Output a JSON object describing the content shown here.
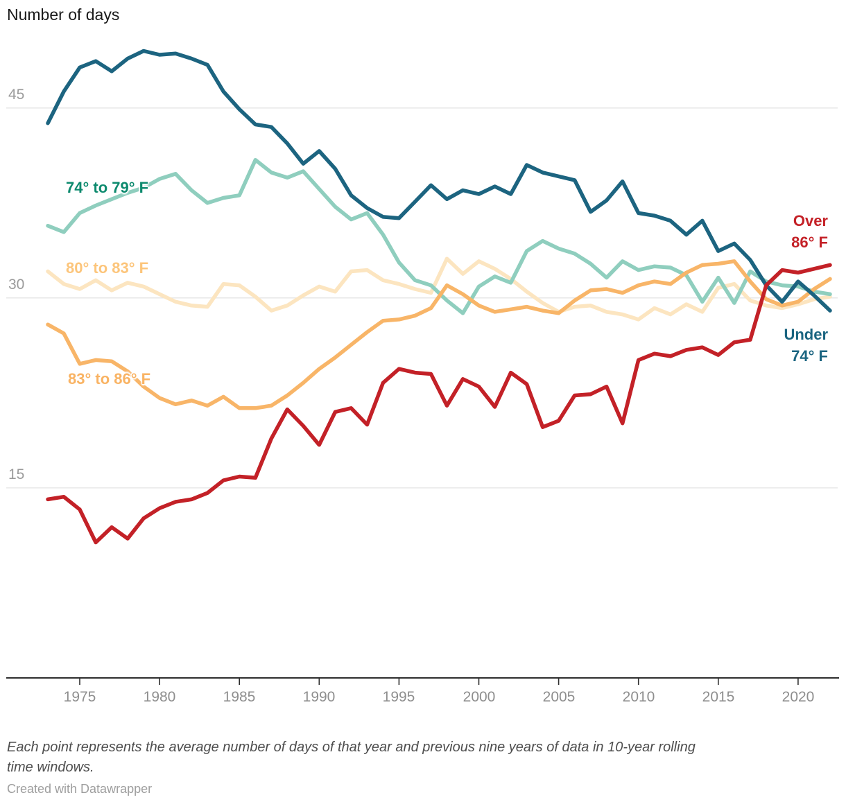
{
  "title": "Number of days",
  "labels": {
    "series_74_79": "74° to 79° F",
    "series_80_83": "80° to 83° F",
    "series_83_86": "83° to 86° F",
    "over_line1": "Over",
    "over_line2": "86° F",
    "under_line1": "Under",
    "under_line2": "74° F"
  },
  "colors": {
    "grid": "#e4e4e4",
    "axis": "#2e2e2e",
    "tick_label": "#8e8e8e",
    "y_label": "#9a9a9a",
    "title": "#1a1a1a",
    "label_74_79": "#0d8a6e",
    "label_80_83": "#fcc57b",
    "label_83_86": "#f9b363",
    "label_over_86": "#c42127",
    "label_under_74": "#1a6480"
  },
  "footer": {
    "note_line1": "Each point represents the average number of days of that year and previous nine years of data in 10-year rolling",
    "note_line2": "time windows.",
    "credit": "Created with Datawrapper"
  },
  "chart_data": {
    "type": "line",
    "title": "Number of days",
    "xlabel": "",
    "ylabel": "Number of days",
    "grid": "horizontal",
    "legend_position": "direct-labels",
    "ylim": [
      0,
      50
    ],
    "y_ticks": [
      45,
      30,
      15
    ],
    "y_tick_labels": [
      "45",
      "30",
      "15"
    ],
    "x_ticks": [
      1975,
      1980,
      1985,
      1990,
      1995,
      2000,
      2005,
      2010,
      2015,
      2020
    ],
    "x_tick_labels": [
      "1975",
      "1980",
      "1985",
      "1990",
      "1995",
      "2000",
      "2005",
      "2010",
      "2015",
      "2020"
    ],
    "x": [
      1973,
      1974,
      1975,
      1976,
      1977,
      1978,
      1979,
      1980,
      1981,
      1982,
      1983,
      1984,
      1985,
      1986,
      1987,
      1988,
      1989,
      1990,
      1991,
      1992,
      1993,
      1994,
      1995,
      1996,
      1997,
      1998,
      1999,
      2000,
      2001,
      2002,
      2003,
      2004,
      2005,
      2006,
      2007,
      2008,
      2009,
      2010,
      2011,
      2012,
      2013,
      2014,
      2015,
      2016,
      2017,
      2018,
      2019,
      2020,
      2021,
      2022
    ],
    "series": [
      {
        "name": "80° to 83° F",
        "color": "#fce5c0",
        "values": [
          32.1,
          31.1,
          30.7,
          31.4,
          30.6,
          31.2,
          30.9,
          30.3,
          29.7,
          29.4,
          29.3,
          31.1,
          31.0,
          30.1,
          29.0,
          29.4,
          30.2,
          30.9,
          30.5,
          32.1,
          32.2,
          31.4,
          31.1,
          30.7,
          30.4,
          33.1,
          31.9,
          32.9,
          32.3,
          31.5,
          30.5,
          29.6,
          28.9,
          29.3,
          29.4,
          28.9,
          28.7,
          28.3,
          29.2,
          28.7,
          29.5,
          28.9,
          30.8,
          31.1,
          29.8,
          29.4,
          29.2,
          29.5,
          29.9,
          30.1
        ]
      },
      {
        "name": "74° to 79° F",
        "color": "#8fcebe",
        "values": [
          35.7,
          35.2,
          36.7,
          37.3,
          37.8,
          38.3,
          38.7,
          39.4,
          39.8,
          38.5,
          37.5,
          37.9,
          38.1,
          40.9,
          39.9,
          39.5,
          40.0,
          38.6,
          37.2,
          36.2,
          36.7,
          35.0,
          32.8,
          31.4,
          31.0,
          29.8,
          28.8,
          30.9,
          31.7,
          31.2,
          33.7,
          34.5,
          33.9,
          33.5,
          32.7,
          31.6,
          32.9,
          32.2,
          32.5,
          32.4,
          31.8,
          29.7,
          31.6,
          29.6,
          32.1,
          31.3,
          31.0,
          30.9,
          30.5,
          30.3
        ]
      },
      {
        "name": "83° to 86° F",
        "color": "#f8b568",
        "values": [
          27.9,
          27.2,
          24.8,
          25.1,
          25.0,
          24.2,
          23.0,
          22.1,
          21.6,
          21.9,
          21.5,
          22.2,
          21.3,
          21.3,
          21.5,
          22.3,
          23.3,
          24.4,
          25.3,
          26.3,
          27.3,
          28.2,
          28.3,
          28.6,
          29.2,
          31.0,
          30.3,
          29.4,
          28.9,
          29.1,
          29.3,
          29.0,
          28.8,
          29.8,
          30.6,
          30.7,
          30.4,
          31.0,
          31.3,
          31.1,
          32.0,
          32.6,
          32.7,
          32.9,
          31.3,
          29.9,
          29.4,
          29.7,
          30.7,
          31.5
        ]
      },
      {
        "name": "Under 74° F",
        "color": "#1c6480",
        "values": [
          43.8,
          46.3,
          48.2,
          48.7,
          47.9,
          48.9,
          49.5,
          49.2,
          49.3,
          48.9,
          48.4,
          46.3,
          44.9,
          43.7,
          43.5,
          42.2,
          40.6,
          41.6,
          40.2,
          38.1,
          37.1,
          36.4,
          36.3,
          37.6,
          38.9,
          37.8,
          38.5,
          38.2,
          38.8,
          38.2,
          40.5,
          39.9,
          39.6,
          39.3,
          36.8,
          37.7,
          39.2,
          36.7,
          36.5,
          36.1,
          35.0,
          36.1,
          33.7,
          34.3,
          33.0,
          31.0,
          29.7,
          31.3,
          30.2,
          29.0
        ]
      },
      {
        "name": "Over 86° F",
        "color": "#c32127",
        "values": [
          14.1,
          14.3,
          13.3,
          10.7,
          11.9,
          11.0,
          12.6,
          13.4,
          13.9,
          14.1,
          14.6,
          15.6,
          15.9,
          15.8,
          18.9,
          21.2,
          19.9,
          18.4,
          21.0,
          21.3,
          20.0,
          23.3,
          24.4,
          24.1,
          24.0,
          21.5,
          23.6,
          23.0,
          21.4,
          24.1,
          23.2,
          19.8,
          20.3,
          22.3,
          22.4,
          23.0,
          20.1,
          25.1,
          25.6,
          25.4,
          25.9,
          26.1,
          25.5,
          26.5,
          26.7,
          31.0,
          32.2,
          32.0,
          32.3,
          32.6
        ]
      }
    ]
  }
}
